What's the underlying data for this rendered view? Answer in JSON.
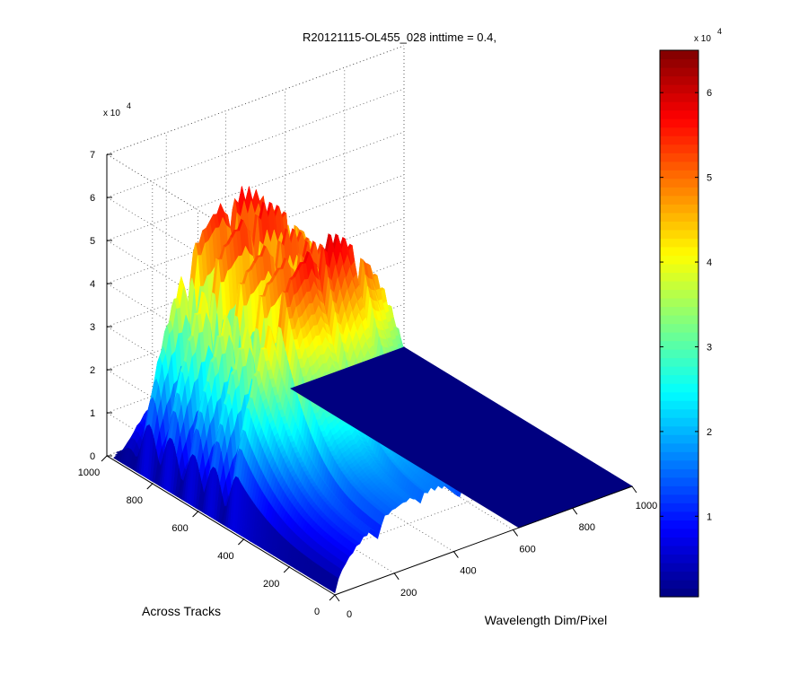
{
  "chart_data": {
    "type": "surface3d",
    "title": "R20121115-OL455_028 inttime = 0.4,",
    "xlabel": "Wavelength Dim/Pixel",
    "ylabel": "Across Tracks",
    "zlabel": "",
    "xlim": [
      0,
      1000
    ],
    "ylim": [
      0,
      1000
    ],
    "zlim": [
      0,
      70000
    ],
    "x_ticks": [
      "0",
      "200",
      "400",
      "600",
      "800",
      "1000"
    ],
    "y_ticks": [
      "0",
      "200",
      "400",
      "600",
      "800",
      "1000"
    ],
    "z_ticks": [
      "0",
      "1",
      "2",
      "3",
      "4",
      "5",
      "6",
      "7"
    ],
    "z_multiplier": {
      "base": "x 10",
      "exponent": "4"
    },
    "colormap": "jet",
    "colorbar": {
      "clim": [
        500,
        65000
      ],
      "ticks": [
        "1",
        "2",
        "3",
        "4",
        "5",
        "6"
      ],
      "multiplier": {
        "base": "x 10",
        "exponent": "4"
      }
    },
    "grid": true,
    "data_extent": {
      "wavelength_pixels": [
        0,
        620
      ],
      "across_track_pixels": [
        0,
        1000
      ]
    },
    "peak_value": 65000,
    "ridges": [
      {
        "across_track": 915,
        "peak": 20000
      },
      {
        "across_track": 830,
        "peak": 60000
      },
      {
        "across_track": 735,
        "peak": 60000
      },
      {
        "across_track": 635,
        "peak": 57000
      },
      {
        "across_track": 545,
        "peak": 57000
      },
      {
        "across_track": 445,
        "peak": 62000
      }
    ]
  }
}
